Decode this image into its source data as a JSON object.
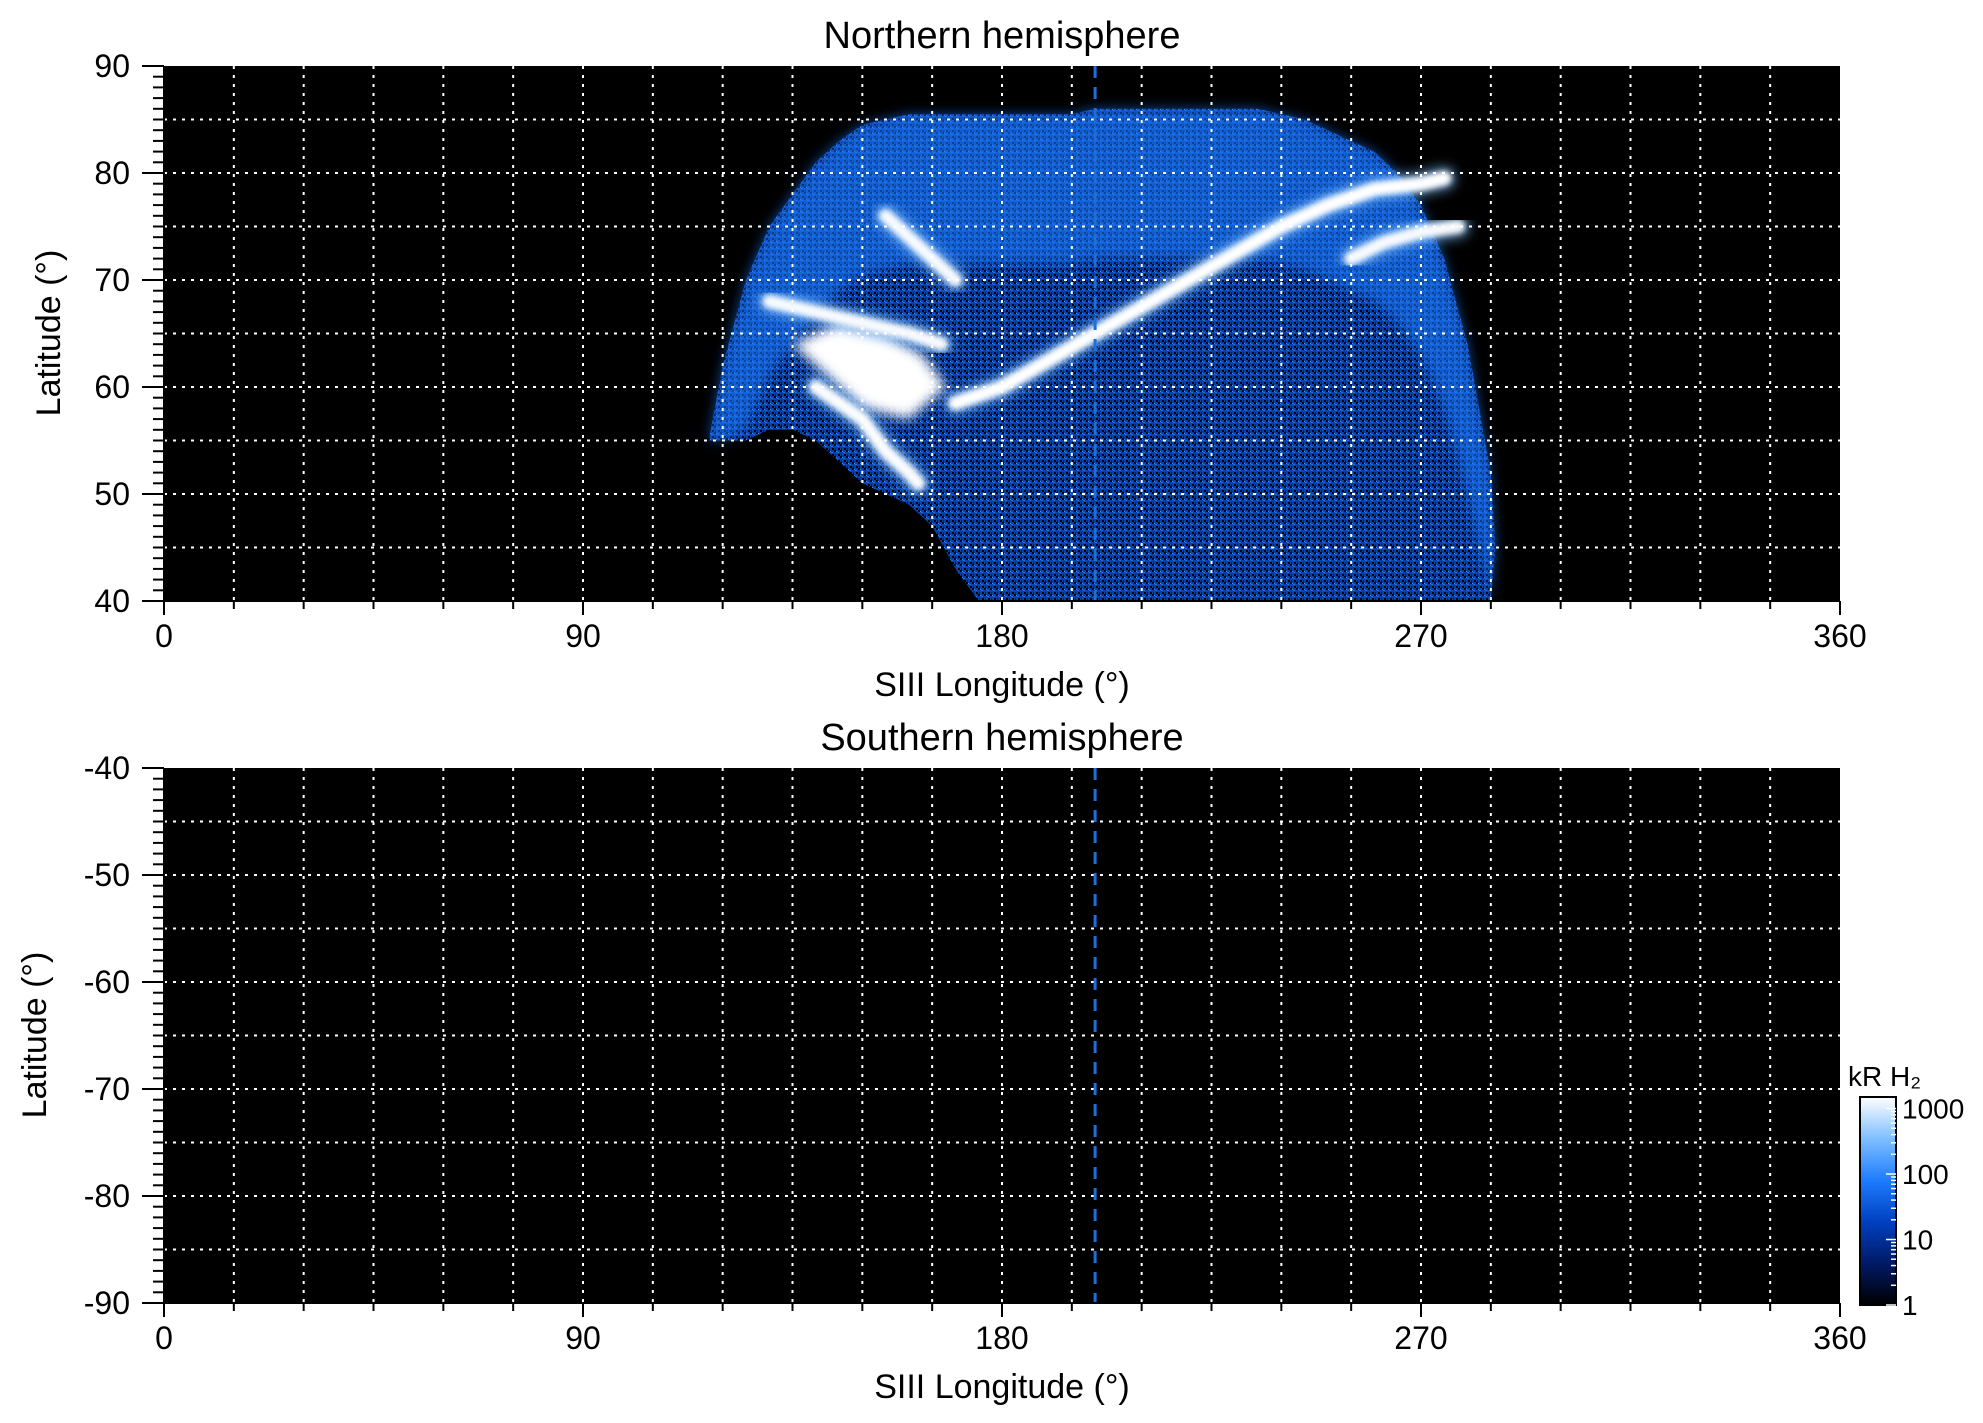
{
  "colors": {
    "background": "#000000",
    "grid": "#ffffff",
    "dashed_line": "#1e6fd9",
    "colormap": [
      "#000000",
      "#001a66",
      "#0040c0",
      "#1e7cff",
      "#7fbfff",
      "#ffffff"
    ]
  },
  "chart_data": [
    {
      "type": "heatmap",
      "title": "Northern hemisphere",
      "xlabel": "SIII Longitude (°)",
      "ylabel": "Latitude (°)",
      "xlim": [
        0,
        360
      ],
      "ylim": [
        40,
        90
      ],
      "xticks": [
        0,
        90,
        180,
        270,
        360
      ],
      "yticks": [
        40,
        50,
        60,
        70,
        80,
        90
      ],
      "grid": true,
      "grid_x_step": 15,
      "grid_y_step": 5,
      "dashed_longitude": 200,
      "coverage": {
        "lon_range": [
          117,
          286
        ],
        "lat_range": [
          40,
          86
        ],
        "boundary_lon_deg": [
          117,
          120,
          125,
          130,
          135,
          140,
          145,
          150,
          155,
          160,
          165,
          170,
          175,
          180,
          185,
          190,
          195,
          200,
          205,
          210,
          215,
          220,
          225,
          230,
          235,
          240,
          245,
          250,
          255,
          260,
          265,
          270,
          275,
          280,
          285,
          286
        ],
        "boundary_lat_top_deg": [
          55,
          62,
          70,
          75,
          78,
          81,
          83,
          84.5,
          85,
          85.5,
          85.5,
          85.5,
          85.5,
          85.5,
          85.5,
          85.5,
          85.5,
          86,
          86,
          86,
          86,
          86,
          86,
          86,
          86,
          85.5,
          85,
          84,
          83,
          82,
          80,
          77,
          72,
          64,
          52,
          45
        ],
        "boundary_lat_bottom_deg": [
          55,
          55,
          55,
          56,
          56,
          55,
          53,
          51,
          50,
          49,
          47,
          43,
          40,
          40,
          40,
          40,
          40,
          40,
          40,
          40,
          40,
          40,
          40,
          40,
          40,
          40,
          40,
          40,
          40,
          40,
          40,
          40,
          40,
          40,
          40,
          45
        ]
      },
      "features": [
        {
          "name": "main_oval_arc",
          "intensity_kR": 1000,
          "lon_deg": [
            170,
            180,
            190,
            200,
            210,
            220,
            230,
            240,
            250,
            260,
            270,
            275
          ],
          "lat_deg": [
            58.5,
            60,
            62.5,
            65,
            67.5,
            70,
            72.5,
            75,
            77,
            78.5,
            79,
            79.5
          ]
        },
        {
          "name": "upper_arc",
          "intensity_kR": 500,
          "lon_deg": [
            255,
            262,
            270,
            278
          ],
          "lat_deg": [
            72,
            73.5,
            74.5,
            75
          ]
        },
        {
          "name": "bright_patch",
          "intensity_kR": 1000,
          "lon_deg": [
            135,
            145,
            155,
            163,
            168,
            160,
            150,
            140
          ],
          "lat_deg": [
            64,
            66,
            65,
            63,
            60,
            57,
            58,
            62
          ]
        },
        {
          "name": "lower_streak",
          "intensity_kR": 700,
          "lon_deg": [
            140,
            150,
            155,
            160,
            162
          ],
          "lat_deg": [
            60,
            57,
            54,
            52,
            51
          ]
        },
        {
          "name": "left_streak",
          "intensity_kR": 500,
          "lon_deg": [
            130,
            140,
            150,
            160,
            167
          ],
          "lat_deg": [
            68,
            67,
            66,
            65,
            64
          ]
        },
        {
          "name": "small_arc",
          "intensity_kR": 500,
          "lon_deg": [
            155,
            160,
            165,
            170
          ],
          "lat_deg": [
            76,
            74,
            72,
            70
          ]
        }
      ]
    },
    {
      "type": "heatmap",
      "title": "Southern hemisphere",
      "xlabel": "SIII Longitude (°)",
      "ylabel": "Latitude (°)",
      "xlim": [
        0,
        360
      ],
      "ylim": [
        -90,
        -40
      ],
      "xticks": [
        0,
        90,
        180,
        270,
        360
      ],
      "yticks": [
        -40,
        -50,
        -60,
        -70,
        -80,
        -90
      ],
      "grid": true,
      "grid_x_step": 15,
      "grid_y_step": 5,
      "dashed_longitude": 200,
      "coverage": null
    }
  ],
  "colorbar": {
    "label": "kR H₂",
    "scale": "log",
    "range": [
      1,
      1500
    ],
    "ticks": [
      1,
      10,
      100,
      1000
    ]
  }
}
